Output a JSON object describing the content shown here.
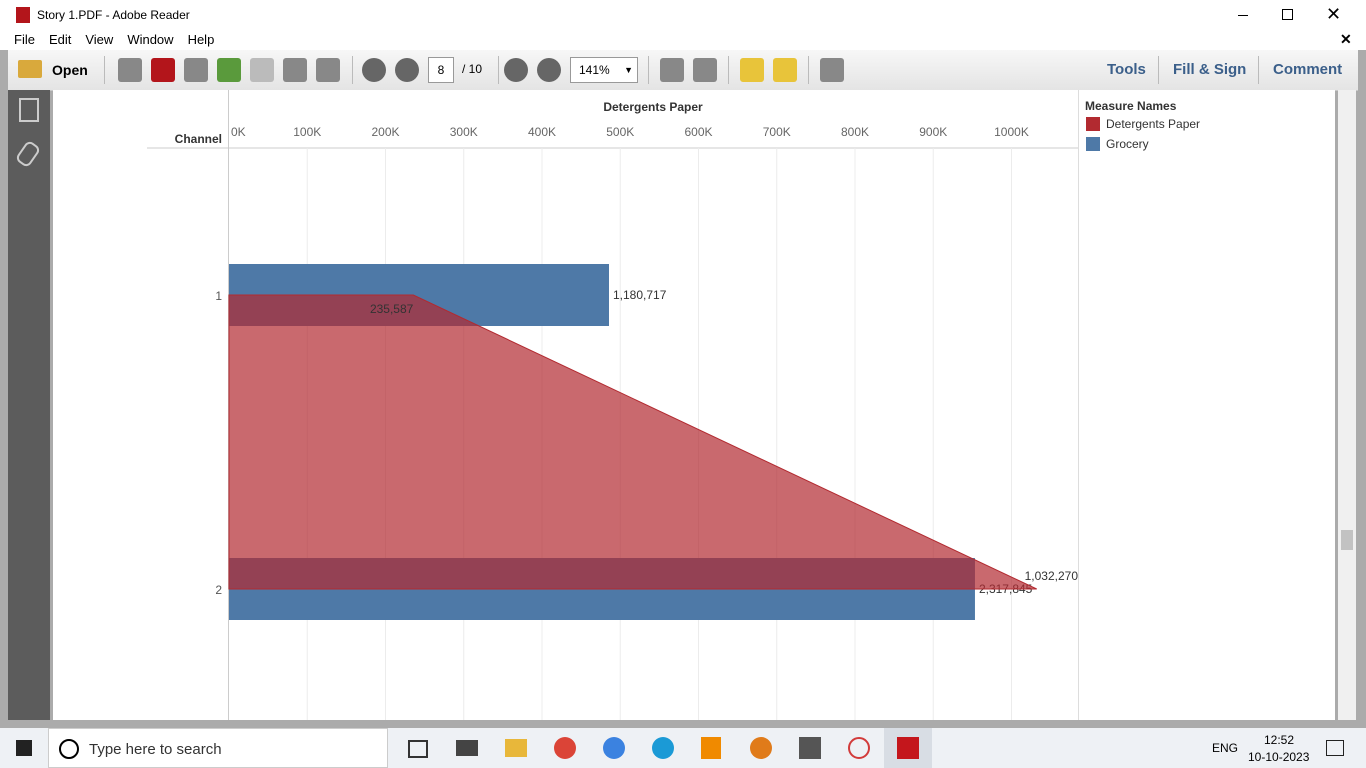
{
  "window": {
    "title": "Story 1.PDF - Adobe Reader"
  },
  "menu": [
    "File",
    "Edit",
    "View",
    "Window",
    "Help"
  ],
  "toolbar": {
    "open": "Open",
    "page": "8",
    "page_total": "/ 10",
    "zoom": "141%",
    "tools": "Tools",
    "fill_sign": "Fill & Sign",
    "comment": "Comment"
  },
  "chart_data": {
    "type": "combo",
    "x_label": "Detergents Paper",
    "y_label": "Channel",
    "legend_title": "Measure Names",
    "categories": [
      "1",
      "2"
    ],
    "xlim": [
      0,
      1085000
    ],
    "xticks": [
      {
        "value": 0,
        "label": "0K"
      },
      {
        "value": 100000,
        "label": "100K"
      },
      {
        "value": 200000,
        "label": "200K"
      },
      {
        "value": 300000,
        "label": "300K"
      },
      {
        "value": 400000,
        "label": "400K"
      },
      {
        "value": 500000,
        "label": "500K"
      },
      {
        "value": 600000,
        "label": "600K"
      },
      {
        "value": 700000,
        "label": "700K"
      },
      {
        "value": 800000,
        "label": "800K"
      },
      {
        "value": 900000,
        "label": "900K"
      },
      {
        "value": 1000000,
        "label": "1000K"
      }
    ],
    "x2lim": [
      0,
      2638000
    ],
    "grid": true,
    "series": [
      {
        "name": "Detergents Paper",
        "color": "#b22a30",
        "mark": "area",
        "values": [
          235587,
          1032270
        ],
        "value_labels": [
          "235,587",
          "1,032,270"
        ]
      },
      {
        "name": "Grocery",
        "color": "#4e79a7",
        "mark": "bar",
        "axis": "x2",
        "values": [
          1180717,
          2317845
        ],
        "value_labels": [
          "1,180,717",
          "2,317,845"
        ]
      }
    ]
  },
  "taskbar": {
    "search": "Type here to search",
    "language": "ENG",
    "time": "12:52",
    "date": "10-10-2023"
  }
}
